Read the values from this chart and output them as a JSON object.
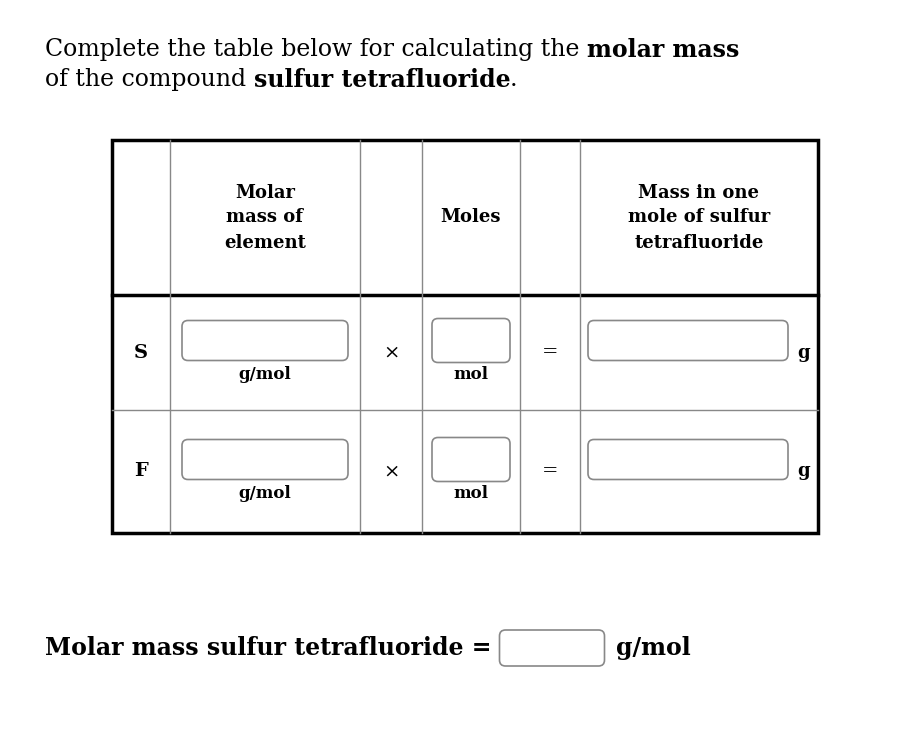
{
  "bg_color": "#ffffff",
  "text_color": "#000000",
  "table_border_color": "#000000",
  "inner_border_color": "#888888",
  "input_box_border": "#888888",
  "input_box_color": "#ffffff",
  "title_line1_normal": "Complete the table below for calculating the ",
  "title_line1_bold": "molar mass",
  "title_line2_normal1": "of the compound ",
  "title_line2_bold": "sulfur tetrafluoride",
  "title_line2_normal2": ".",
  "header_col1": "Molar\nmass of\nelement",
  "header_col2": "Moles",
  "header_col3": "Mass in one\nmole of sulfur\ntetrafluoride",
  "row1_element": "S",
  "row1_unit1": "g/mol",
  "row1_unit2": "mol",
  "row1_unit3": "g",
  "row2_element": "F",
  "row2_unit1": "g/mol",
  "row2_unit2": "mol",
  "row2_unit3": "g",
  "footer_bold": "Molar mass sulfur tetrafluoride =",
  "footer_unit": "g/mol",
  "fig_width": 9.04,
  "fig_height": 7.38,
  "dpi": 100
}
